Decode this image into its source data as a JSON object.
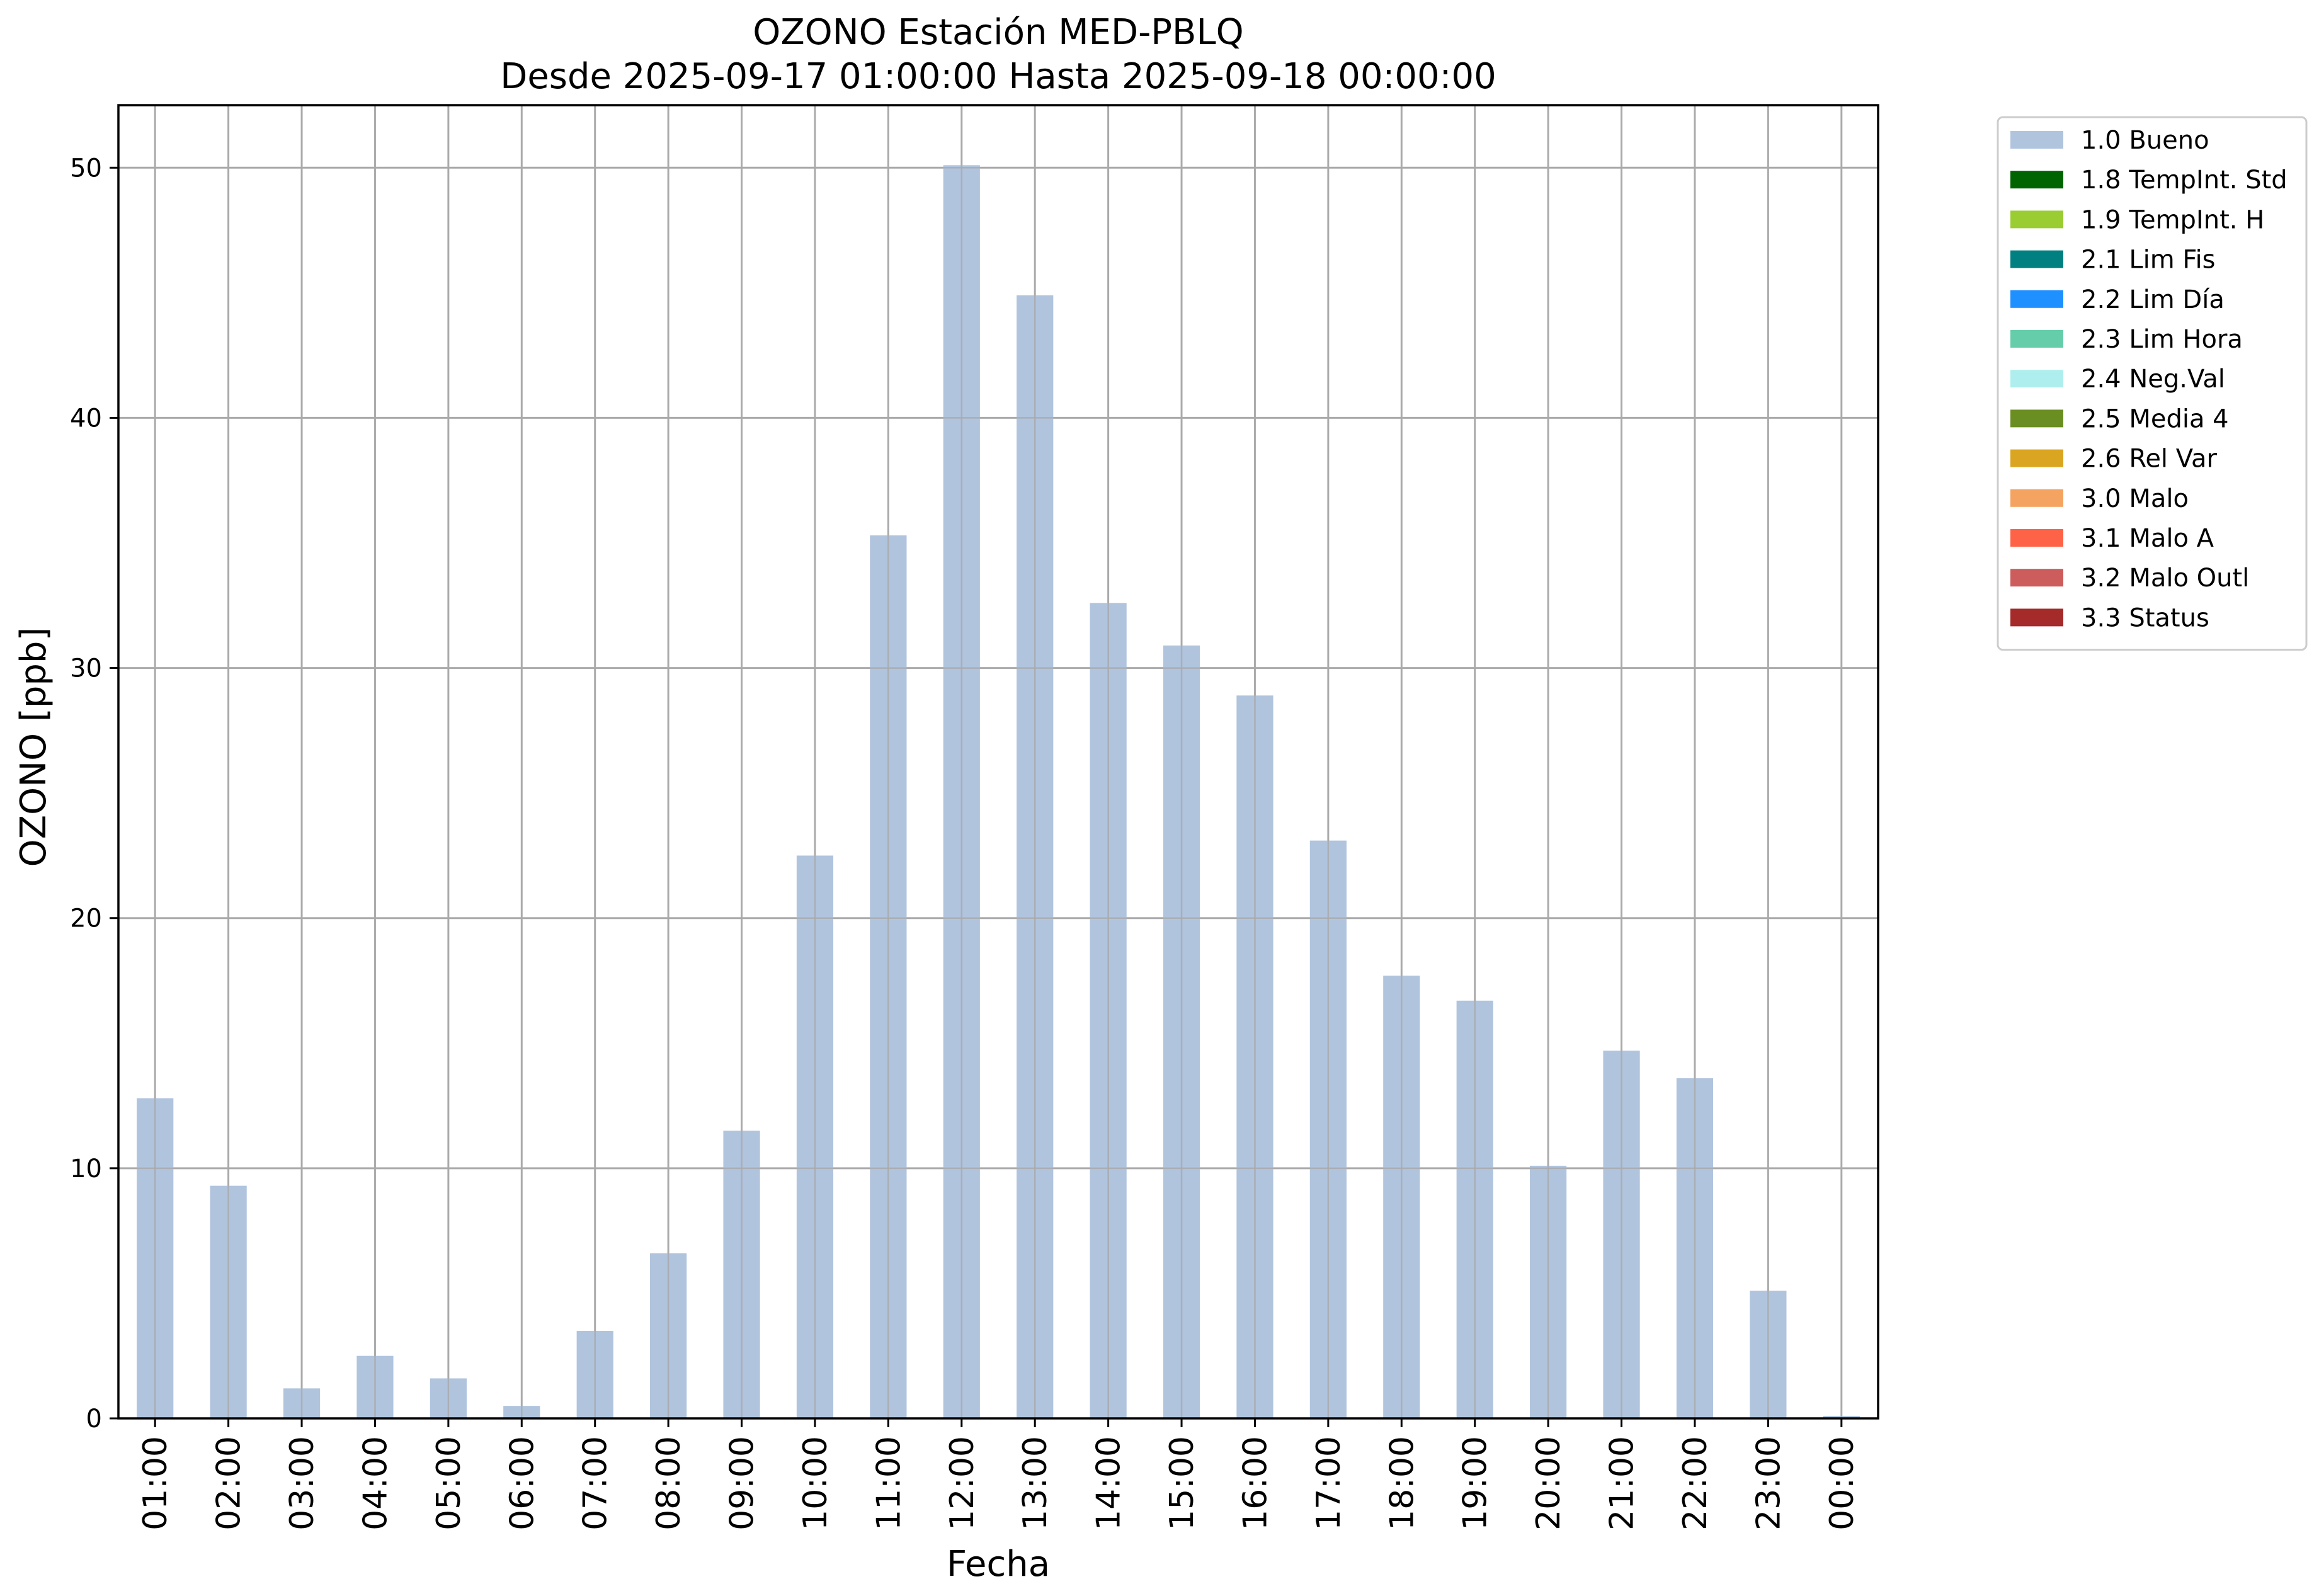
{
  "chart_data": {
    "type": "bar",
    "title": "OZONO Estación MED-PBLQ",
    "subtitle": "Desde 2025-09-17 01:00:00 Hasta 2025-09-18 00:00:00",
    "xlabel": "Fecha",
    "ylabel": "OZONO [ppb]",
    "ylim": [
      0,
      52.5
    ],
    "yticks": [
      0,
      10,
      20,
      30,
      40,
      50
    ],
    "grid": true,
    "legend_position": "outside-top-right",
    "categories": [
      "01:00",
      "02:00",
      "03:00",
      "04:00",
      "05:00",
      "06:00",
      "07:00",
      "08:00",
      "09:00",
      "10:00",
      "11:00",
      "12:00",
      "13:00",
      "14:00",
      "15:00",
      "16:00",
      "17:00",
      "18:00",
      "19:00",
      "20:00",
      "21:00",
      "22:00",
      "23:00",
      "00:00"
    ],
    "series": [
      {
        "name": "1.0 Bueno",
        "color": "#b0c4de",
        "values": [
          12.8,
          9.3,
          1.2,
          2.5,
          1.6,
          0.5,
          3.5,
          6.6,
          11.5,
          22.5,
          35.3,
          50.1,
          44.9,
          32.6,
          30.9,
          28.9,
          23.1,
          17.7,
          16.7,
          10.1,
          14.7,
          13.6,
          5.1,
          0.1
        ]
      }
    ],
    "legend": [
      {
        "label": "1.0 Bueno",
        "color": "#b0c4de"
      },
      {
        "label": "1.8 TempInt. Std",
        "color": "#006400"
      },
      {
        "label": "1.9 TempInt. H",
        "color": "#9acd32"
      },
      {
        "label": "2.1 Lim Fis",
        "color": "#008080"
      },
      {
        "label": "2.2 Lim Día",
        "color": "#1e90ff"
      },
      {
        "label": "2.3 Lim Hora",
        "color": "#66cdaa"
      },
      {
        "label": "2.4 Neg.Val",
        "color": "#afeeee"
      },
      {
        "label": "2.5 Media 4",
        "color": "#6b8e23"
      },
      {
        "label": "2.6 Rel Var",
        "color": "#daa520"
      },
      {
        "label": "3.0 Malo",
        "color": "#f4a460"
      },
      {
        "label": "3.1 Malo A",
        "color": "#ff6347"
      },
      {
        "label": "3.2 Malo Outl",
        "color": "#cd5c5c"
      },
      {
        "label": "3.3 Status",
        "color": "#a52a2a"
      }
    ]
  }
}
